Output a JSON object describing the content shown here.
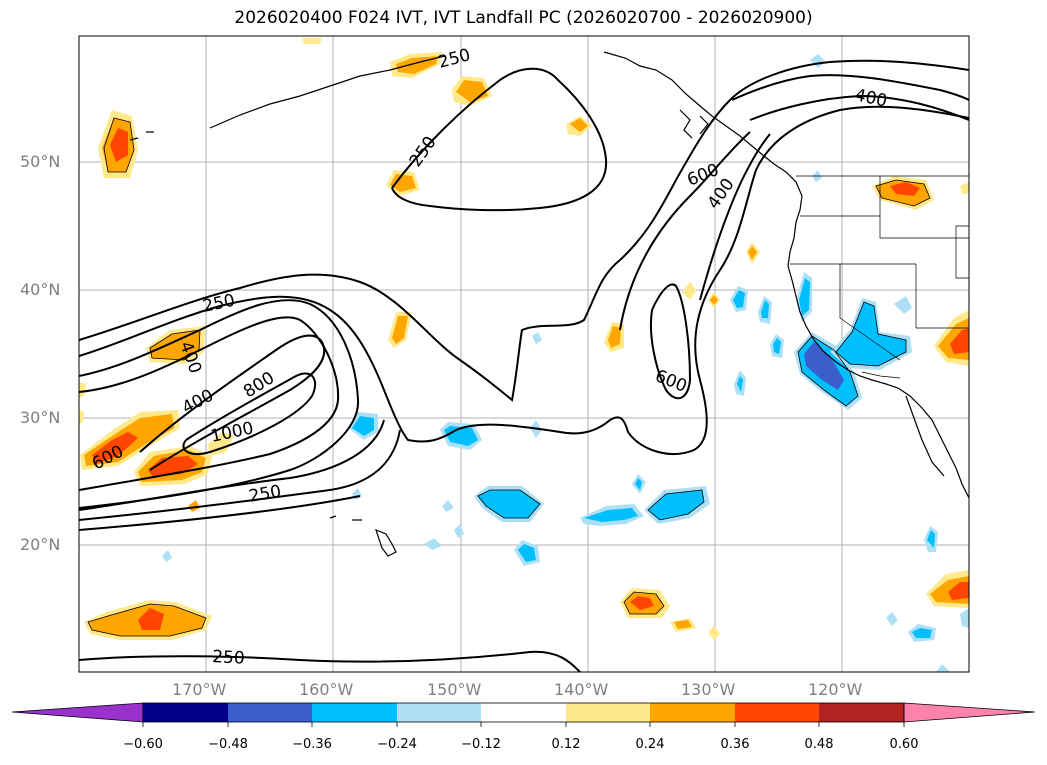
{
  "title": "2026020400 F024 IVT, IVT Landfall PC (2026020700 - 2026020900)",
  "lon_ticks": [
    "170°W",
    "160°W",
    "150°W",
    "140°W",
    "130°W",
    "120°W"
  ],
  "lat_ticks": [
    "50°N",
    "40°N",
    "30°N",
    "20°N"
  ],
  "contour_labels": [
    "250",
    "250",
    "250",
    "250",
    "250",
    "400",
    "400",
    "400",
    "400",
    "600",
    "600",
    "600",
    "800",
    "1000"
  ],
  "colorbar": {
    "tick_labels": [
      "−0.60",
      "−0.48",
      "−0.36",
      "−0.24",
      "−0.12",
      "0.12",
      "0.24",
      "0.36",
      "0.48",
      "0.60"
    ],
    "colors": [
      "#9932CC",
      "#00008B",
      "#3A5FCD",
      "#00BFFF",
      "#ADE0F5",
      "#FFFFFF",
      "#FFE98A",
      "#FFA500",
      "#FF4500",
      "#B22222",
      "#FF82AB"
    ]
  }
}
